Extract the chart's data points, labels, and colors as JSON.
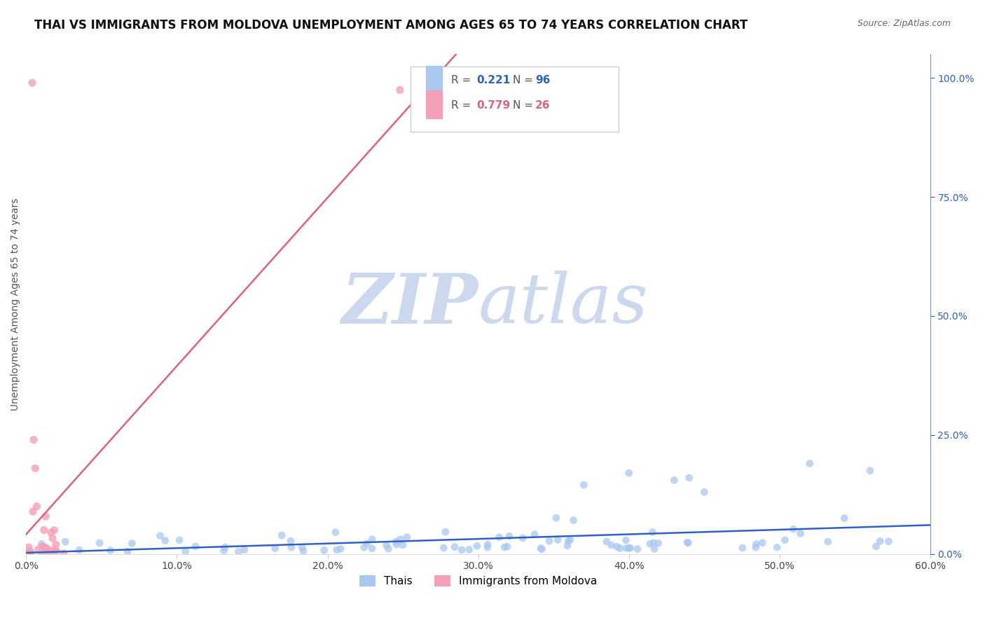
{
  "title": "THAI VS IMMIGRANTS FROM MOLDOVA UNEMPLOYMENT AMONG AGES 65 TO 74 YEARS CORRELATION CHART",
  "source": "Source: ZipAtlas.com",
  "ylabel": "Unemployment Among Ages 65 to 74 years",
  "xlim": [
    0.0,
    0.6
  ],
  "ylim": [
    0.0,
    1.05
  ],
  "xticks": [
    0.0,
    0.1,
    0.2,
    0.3,
    0.4,
    0.5,
    0.6
  ],
  "xtick_labels": [
    "0.0%",
    "10.0%",
    "20.0%",
    "30.0%",
    "40.0%",
    "50.0%",
    "60.0%"
  ],
  "yticks_right": [
    0.0,
    0.25,
    0.5,
    0.75,
    1.0
  ],
  "ytick_labels_right": [
    "0.0%",
    "25.0%",
    "50.0%",
    "75.0%",
    "100.0%"
  ],
  "thai_R": 0.221,
  "thai_N": 96,
  "moldova_R": 0.779,
  "moldova_N": 26,
  "thai_color": "#a8c8f0",
  "moldova_color": "#f4a0b8",
  "thai_line_color": "#3060c0",
  "moldova_line_color": "#e06080",
  "watermark_zip": "ZIP",
  "watermark_atlas": "atlas",
  "watermark_color": "#ccd8ee",
  "background_color": "#ffffff",
  "grid_color": "#e8e8e8",
  "title_fontsize": 12,
  "axis_fontsize": 10,
  "legend_R_color_thai": "#3060c0",
  "legend_R_color_moldova": "#e06080",
  "legend_N_color_thai": "#3060c0",
  "legend_N_color_moldova": "#e06080"
}
